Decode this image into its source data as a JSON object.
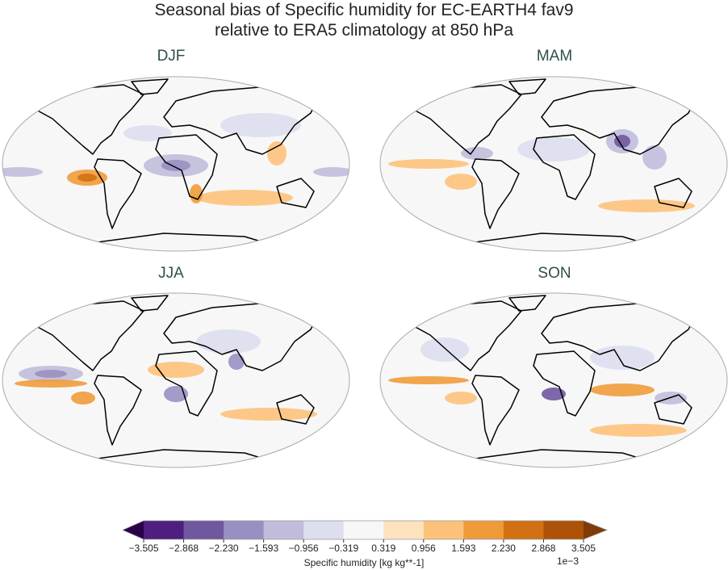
{
  "chart_data": {
    "type": "heatmap",
    "title_line1": "Seasonal bias of Specific humidity for EC-EARTH4 fav9",
    "title_line2": "relative to ERA5 climatology at 850 hPa",
    "panels": [
      {
        "title": "DJF"
      },
      {
        "title": "MAM"
      },
      {
        "title": "JJA"
      },
      {
        "title": "SON"
      }
    ],
    "projection": "Robinson",
    "colorbar": {
      "label": "Specific humidity [kg kg**-1]",
      "exponent": "1e−3",
      "ticks": [
        "−3.505",
        "−2.868",
        "−2.230",
        "−1.593",
        "−0.956",
        "−0.319",
        "0.319",
        "0.956",
        "1.593",
        "2.230",
        "2.868",
        "3.505"
      ],
      "levels": [
        -3.505,
        -2.868,
        -2.23,
        -1.593,
        -0.956,
        -0.319,
        0.319,
        0.956,
        1.593,
        2.23,
        2.868,
        3.505
      ],
      "colors": [
        "#4f1f7f",
        "#6f589e",
        "#9990c2",
        "#c0bcdc",
        "#dddeee",
        "#f7f7f7",
        "#fde3bd",
        "#fdc27a",
        "#ef9b3a",
        "#d27114",
        "#ad5208"
      ],
      "under_color": "#2d004b",
      "over_color": "#7f3b08",
      "extend": "both",
      "orientation": "horizontal"
    }
  }
}
